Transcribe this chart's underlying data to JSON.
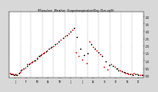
{
  "title": "Milwaukee  Weather  Evapotranspiration/Day (Ozs sq/ft)",
  "y_ticks": [
    0.0,
    0.5,
    1.0,
    1.5,
    2.0,
    2.5,
    3.0,
    3.5,
    4.0
  ],
  "ylim": [
    -0.15,
    4.3
  ],
  "background_color": "#d8d8d8",
  "plot_background": "#ffffff",
  "months": [
    "J",
    "F",
    "M",
    "A",
    "M",
    "J",
    "J",
    "A",
    "S",
    "O",
    "N",
    "D"
  ],
  "month_positions": [
    1,
    32,
    60,
    91,
    121,
    152,
    182,
    213,
    244,
    274,
    305,
    335
  ],
  "red_x": [
    2,
    7,
    12,
    17,
    22,
    30,
    35,
    44,
    50,
    56,
    63,
    70,
    77,
    84,
    88,
    96,
    104,
    112,
    120,
    130,
    140,
    152,
    162,
    172,
    182,
    190,
    200,
    210,
    218,
    228,
    238,
    248,
    258,
    268,
    278,
    288,
    295,
    302,
    312,
    318,
    325,
    333,
    340,
    348,
    356,
    363
  ],
  "red_y": [
    0.18,
    0.12,
    0.06,
    0.08,
    0.05,
    0.22,
    0.4,
    0.55,
    0.75,
    0.85,
    0.95,
    1.05,
    1.2,
    1.35,
    1.45,
    1.55,
    1.7,
    1.85,
    2.0,
    2.2,
    2.4,
    2.65,
    2.85,
    3.1,
    1.6,
    1.3,
    1.1,
    0.85,
    2.3,
    1.95,
    1.7,
    1.45,
    0.6,
    0.4,
    0.8,
    0.6,
    0.45,
    0.35,
    0.25,
    0.18,
    0.12,
    0.08,
    0.15,
    0.1,
    0.06,
    0.04
  ],
  "black_x": [
    4,
    10,
    15,
    20,
    27,
    33,
    40,
    48,
    55,
    61,
    68,
    75,
    82,
    87,
    93,
    100,
    108,
    116,
    125,
    135,
    147,
    157,
    167,
    177,
    185,
    195,
    205,
    213,
    223,
    233,
    243,
    253,
    263,
    273,
    283,
    292,
    298,
    308,
    315,
    322,
    330,
    337,
    345,
    352,
    360
  ],
  "black_y": [
    0.1,
    0.09,
    0.07,
    0.06,
    0.18,
    0.35,
    0.5,
    0.65,
    0.8,
    0.9,
    1.0,
    1.15,
    1.3,
    1.4,
    1.5,
    1.65,
    1.8,
    1.95,
    2.1,
    2.3,
    2.55,
    2.75,
    3.0,
    3.2,
    2.6,
    1.8,
    1.4,
    1.5,
    2.1,
    1.8,
    1.55,
    1.3,
    0.95,
    0.7,
    0.65,
    0.5,
    0.38,
    0.28,
    0.2,
    0.14,
    0.1,
    0.07,
    0.09,
    0.06,
    0.04
  ]
}
